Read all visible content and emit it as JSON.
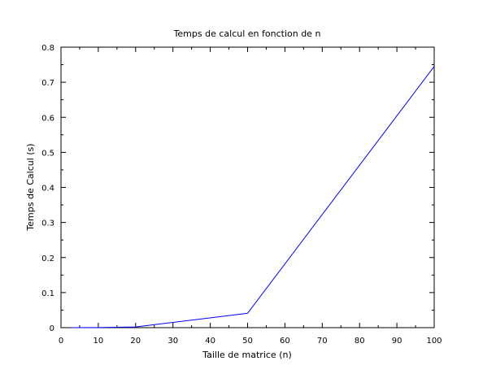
{
  "chart_data": {
    "type": "line",
    "title": "Temps de calcul en fonction de n",
    "xlabel": "Taille de matrice (n)",
    "ylabel": "Temps de Calcul (s)",
    "xlim": [
      0,
      100
    ],
    "ylim": [
      0,
      0.8
    ],
    "xticks": [
      "0",
      "10",
      "20",
      "30",
      "40",
      "50",
      "60",
      "70",
      "80",
      "90",
      "100"
    ],
    "yticks": [
      "0",
      "0.1",
      "0.2",
      "0.3",
      "0.4",
      "0.5",
      "0.6",
      "0.7",
      "0.8"
    ],
    "grid": false,
    "series": [
      {
        "color": "#0000ff",
        "x": [
          3,
          10,
          20,
          50,
          100
        ],
        "y": [
          0.0,
          0.0003,
          0.002,
          0.041,
          0.745
        ]
      }
    ]
  }
}
